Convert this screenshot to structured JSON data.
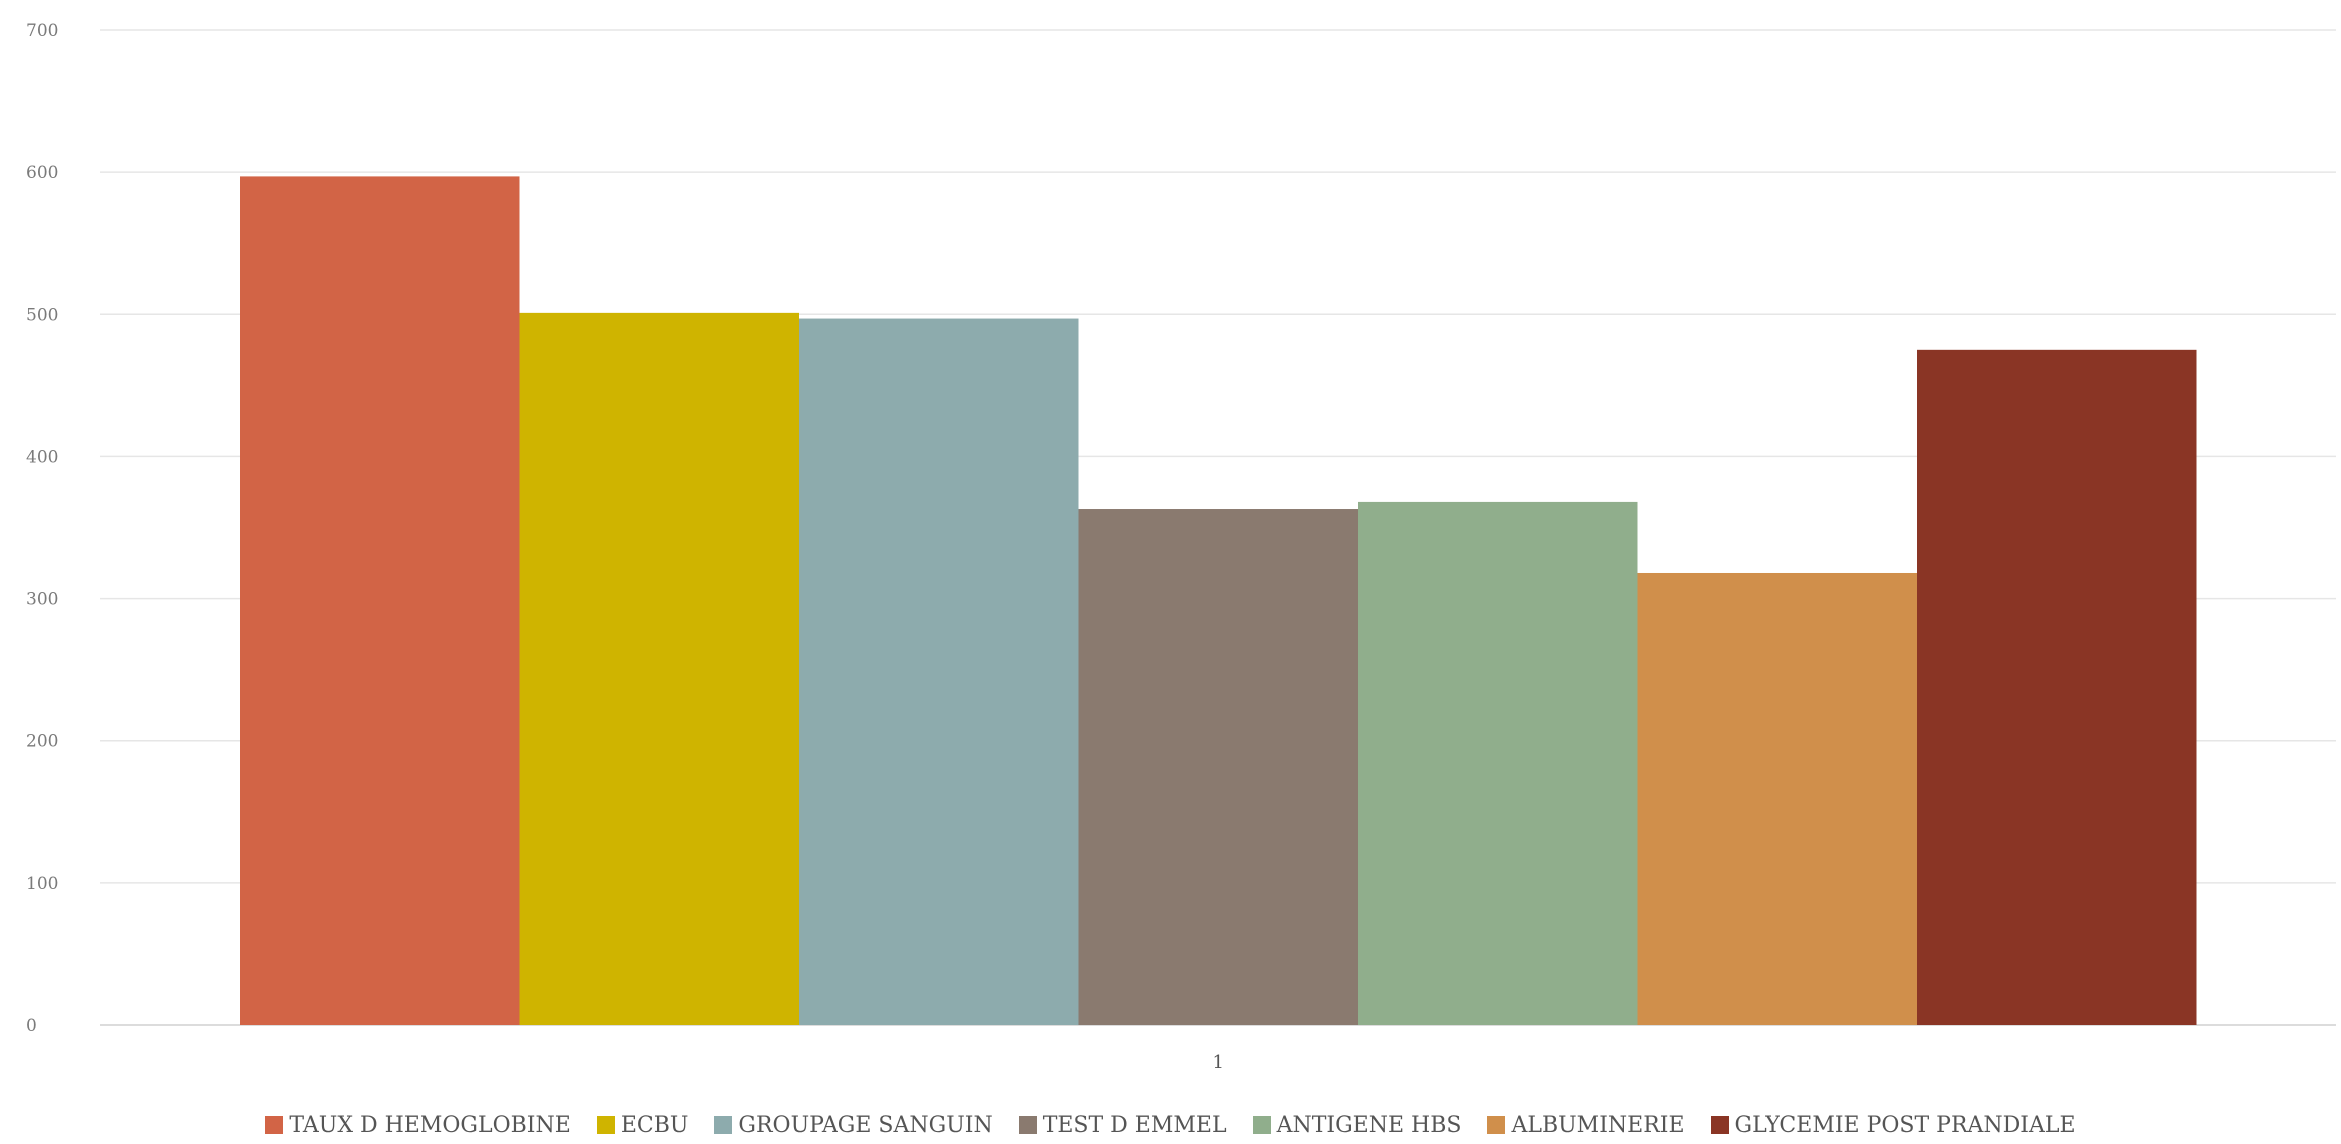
{
  "chart_data": {
    "type": "bar",
    "title": "",
    "xlabel": "",
    "ylabel": "",
    "categories": [
      "1"
    ],
    "ylim": [
      0,
      700
    ],
    "yticks": [
      0,
      100,
      200,
      300,
      400,
      500,
      600,
      700
    ],
    "grid": true,
    "legend_position": "bottom",
    "series": [
      {
        "name": "TAUX D HEMOGLOBINE",
        "values": [
          597
        ],
        "color": "#D26446"
      },
      {
        "name": "ECBU",
        "values": [
          501
        ],
        "color": "#CFB400"
      },
      {
        "name": "GROUPAGE SANGUIN",
        "values": [
          497
        ],
        "color": "#8DABAD"
      },
      {
        "name": "TEST D EMMEL",
        "values": [
          363
        ],
        "color": "#8A7A6F"
      },
      {
        "name": "ANTIGENE HBS",
        "values": [
          368
        ],
        "color": "#90AE8C"
      },
      {
        "name": "ALBUMINERIE",
        "values": [
          318
        ],
        "color": "#D08F4B"
      },
      {
        "name": "GLYCEMIE POST PRANDIALE",
        "values": [
          475
        ],
        "color": "#8A3525"
      }
    ]
  }
}
